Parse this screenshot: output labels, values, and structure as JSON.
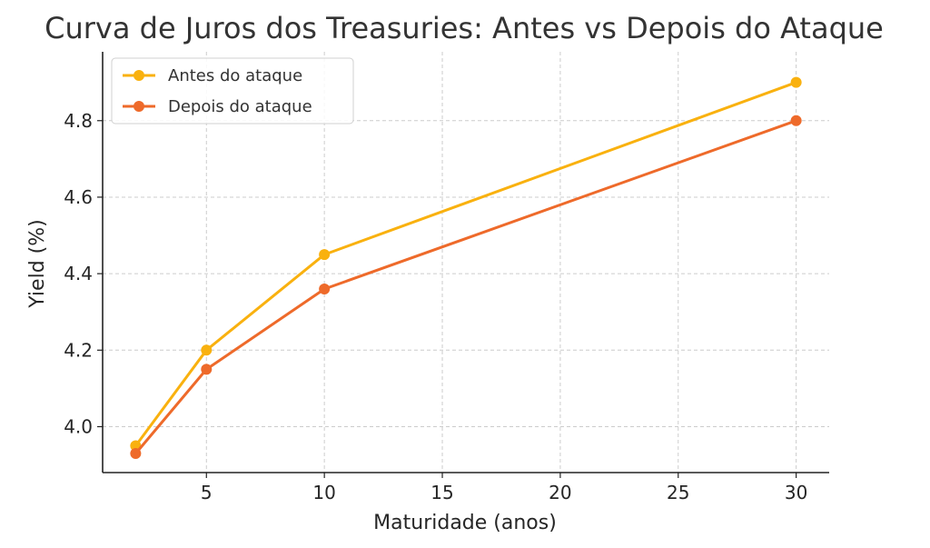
{
  "chart_data": {
    "type": "line",
    "title": "Curva de Juros dos Treasuries: Antes vs Depois do Ataque",
    "xlabel": "Maturidade (anos)",
    "ylabel": "Yield (%)",
    "x": [
      2,
      5,
      10,
      30
    ],
    "series": [
      {
        "name": "Antes do ataque",
        "values": [
          3.95,
          4.2,
          4.45,
          4.9
        ],
        "color": "#f9b10f"
      },
      {
        "name": "Depois do ataque",
        "values": [
          3.93,
          4.15,
          4.36,
          4.8
        ],
        "color": "#ee6a2a"
      }
    ],
    "xlim": [
      0.6,
      31.4
    ],
    "ylim": [
      3.88,
      4.98
    ],
    "xticks": [
      5,
      10,
      15,
      20,
      25,
      30
    ],
    "yticks": [
      4.0,
      4.2,
      4.4,
      4.6,
      4.8
    ],
    "xtick_labels": [
      "5",
      "10",
      "15",
      "20",
      "25",
      "30"
    ],
    "ytick_labels": [
      "4.0",
      "4.2",
      "4.4",
      "4.6",
      "4.8"
    ],
    "grid": true,
    "legend_position": "top-left"
  }
}
